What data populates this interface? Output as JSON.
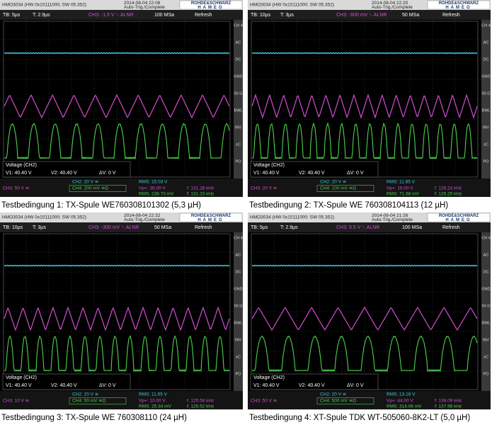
{
  "logo": {
    "top": "ROHDE&SCHWARZ",
    "bottom": "HAMEG"
  },
  "side_menu": [
    "CH 4",
    "AC",
    "DC",
    "GND",
    "50 Ω",
    "BWL",
    "INV",
    "±C",
    "PO"
  ],
  "panels": [
    {
      "model": "HMO3034 (HW 0x10111000; SW 05.352)",
      "datetime": "2014-08-04 22:08",
      "status": "Auto-Trig./Complete",
      "timebase": "TB: 5µs",
      "trigger_time": "T: 2.9µs",
      "trigger": "CH3: -1.5 V ⟍ ALNR",
      "sample_rate": "100 MSa",
      "mode": "Refresh",
      "cursor_title": "Voltage (CH2)",
      "v1": "V1: 40.40 V",
      "v2": "V2: 40.40 V",
      "dv": "ΔV: 0 V",
      "ch2_scale": "CH2: 20 V ≅",
      "ch3_scale": "CH3: 50 V ≅",
      "ch4_scale": "CH4: 200 mV ≅Ω",
      "rms_ch2": "RMS: 15.03 V",
      "vp": "Vp+: 36.00 V",
      "rms_ch4": "RMS: 238.73 mV",
      "f_ch3": "f: 131.28 kHz",
      "f_ch4": "f: 131.23 kHz",
      "caption": "Testbedingung 1: TX-Spule WE760308101302 (5,3 µH)"
    },
    {
      "model": "HMO3034 (HW 0x10111000; SW 05.352)",
      "datetime": "2014-08-04 22:20",
      "status": "Auto-Trig./Complete",
      "timebase": "TB: 10µs",
      "trigger_time": "T: 3µs",
      "trigger": "CH3: -600 mV ⟍ ALNR",
      "sample_rate": "50 MSa",
      "mode": "Refresh",
      "cursor_title": "Voltage (CH2)",
      "v1": "V1: 40.40 V",
      "v2": "V2: 40.40 V",
      "dv": "ΔV: 0 V",
      "ch2_scale": "CH2: 20 V ≅",
      "ch3_scale": "CH3: 20 V ≅",
      "ch4_scale": "CH4: 100 mV ≅Ω",
      "rms_ch2": "RMS: 11.85 V",
      "vp": "Vp+: 16.00 V",
      "rms_ch4": "RMS: 71.68 mV",
      "f_ch3": "f: 126.24 kHz",
      "f_ch4": "f: 126.20 kHz",
      "caption": "Testbedingung 2: TX-Spule WE 760308104113 (12 µH)"
    },
    {
      "model": "HMO3034 (HW 0x10111000; SW 05.352)",
      "datetime": "2014-08-04 22:32",
      "status": "Auto-Trig./Complete",
      "timebase": "TB: 10µs",
      "trigger_time": "T: 3µs",
      "trigger": "CH3: -300 mV ⟍ ALNR",
      "sample_rate": "50 MSa",
      "mode": "Refresh",
      "cursor_title": "Voltage (CH2)",
      "v1": "V1: 40.40 V",
      "v2": "V2: 40.40 V",
      "dv": "ΔV: 0 V",
      "ch2_scale": "CH2: 20 V ≅",
      "ch3_scale": "CH3: 10 V ≅",
      "ch4_scale": "CH4: 50 mV ≅Ω",
      "rms_ch2": "RMS: 11.65 V",
      "vp": "Vp+: 10.00 V",
      "rms_ch4": "RMS: 25.34 mV",
      "f_ch3": "f: 125.56 kHz",
      "f_ch4": "f: 125.52 kHz",
      "caption": "Testbedingung 3: TX-Spule WE 760308110 (24 µH)"
    },
    {
      "model": "HMO3034 (HW 0x10111000; SW 05.352)",
      "datetime": "2014-08-04 21:26",
      "status": "Auto-Trig./Complete",
      "timebase": "TB: 5µs",
      "trigger_time": "T: 2.9µs",
      "trigger": "CH3: 9.5 V ⟍ ALNR",
      "sample_rate": "100 MSa",
      "mode": "Refresh",
      "cursor_title": "Voltage (CH2)",
      "v1": "V1: 40.40 V",
      "v2": "V2: 40.40 V",
      "dv": "ΔV: 0 V",
      "ch2_scale": "CH2: 20 V ≅",
      "ch3_scale": "CH3: 50 V ≅",
      "ch4_scale": "CH4: 500 mV ≅Ω",
      "rms_ch2": "RMS: 13.16 V",
      "vp": "Vp+: 44.00 V",
      "rms_ch4": "RMS: 314.06 mV",
      "f_ch3": "f: 138.09 kHz",
      "f_ch4": "f: 137.98 kHz",
      "caption": "Testbedingung 4: XT-Spule TDK WT-505060-8K2-LT (5,0 µH)"
    }
  ]
}
